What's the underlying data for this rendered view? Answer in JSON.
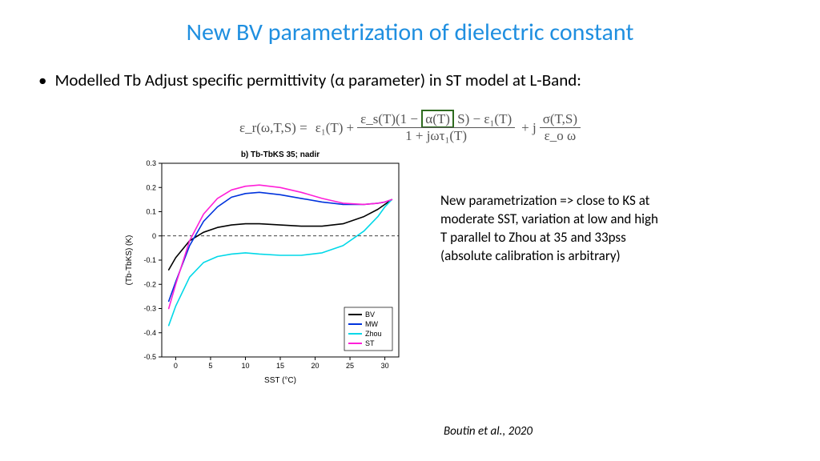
{
  "title": "New BV parametrization of dielectric constant",
  "title_color": "#1f8fe0",
  "bullet": "Modelled Tb Adjust specific permittivity (α parameter) in ST model at L-Band:",
  "equation": {
    "lhs": "ε_r(ω,T,S) =",
    "t1": "ε₁(T)",
    "plus1": "+",
    "num_a": "ε_s(T)(1 −",
    "alpha": "α(T)",
    "num_b": "S) − ε₁(T)",
    "den": "1 + jωτ₁(T)",
    "plus2": "+ j",
    "num2": "σ(T,S)",
    "den2": "ε_o ω"
  },
  "side_text": "New parametrization => close to KS at moderate SST, variation at low and high T parallel to Zhou at 35 and 33pss (absolute calibration is arbitrary)",
  "citation": "Boutin et al., 2020",
  "chart": {
    "type": "line",
    "title": "b) Tb-TbKS 35; nadir",
    "xlabel": "SST (°C)",
    "ylabel": "(Tb-TbKS) (K)",
    "xlim": [
      -2,
      32
    ],
    "ylim": [
      -0.5,
      0.3
    ],
    "xtick_step": 5,
    "xticks": [
      0,
      5,
      10,
      15,
      20,
      25,
      30
    ],
    "yticks": [
      -0.5,
      -0.4,
      -0.3,
      -0.2,
      -0.1,
      0,
      0.1,
      0.2,
      0.3
    ],
    "background_color": "#ffffff",
    "grid": false,
    "zero_line": {
      "style": "dashed",
      "color": "#000000"
    },
    "box_color": "#000000",
    "line_width": 1.6,
    "legend_position": "lower-right",
    "series": [
      {
        "name": "BV",
        "color": "#000000",
        "x": [
          -1,
          0,
          2,
          4,
          6,
          8,
          10,
          12,
          15,
          18,
          21,
          24,
          27,
          29,
          30,
          31
        ],
        "y": [
          -0.14,
          -0.09,
          -0.02,
          0.015,
          0.035,
          0.045,
          0.05,
          0.05,
          0.045,
          0.04,
          0.04,
          0.05,
          0.08,
          0.11,
          0.13,
          0.15
        ]
      },
      {
        "name": "MW",
        "color": "#0033dd",
        "x": [
          -1,
          0,
          2,
          4,
          6,
          8,
          10,
          12,
          15,
          18,
          21,
          24,
          27,
          29,
          30,
          31
        ],
        "y": [
          -0.27,
          -0.19,
          -0.04,
          0.06,
          0.12,
          0.16,
          0.175,
          0.18,
          0.17,
          0.155,
          0.14,
          0.13,
          0.13,
          0.135,
          0.14,
          0.15
        ]
      },
      {
        "name": "Zhou",
        "color": "#00d8e8",
        "x": [
          -1,
          0,
          2,
          4,
          6,
          8,
          10,
          12,
          15,
          18,
          21,
          24,
          27,
          29,
          30,
          31
        ],
        "y": [
          -0.37,
          -0.29,
          -0.17,
          -0.11,
          -0.085,
          -0.075,
          -0.07,
          -0.075,
          -0.08,
          -0.08,
          -0.07,
          -0.04,
          0.02,
          0.08,
          0.12,
          0.15
        ]
      },
      {
        "name": "ST",
        "color": "#ff1fd8",
        "x": [
          -1,
          0,
          2,
          4,
          6,
          8,
          10,
          12,
          15,
          18,
          21,
          24,
          27,
          29,
          30,
          31
        ],
        "y": [
          -0.3,
          -0.2,
          -0.02,
          0.09,
          0.155,
          0.19,
          0.205,
          0.21,
          0.2,
          0.18,
          0.155,
          0.135,
          0.13,
          0.135,
          0.14,
          0.15
        ]
      }
    ]
  }
}
